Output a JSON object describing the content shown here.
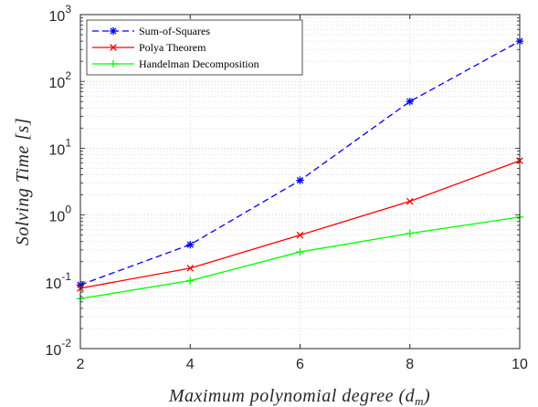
{
  "chart_data": {
    "type": "line",
    "title": "",
    "xlabel": "Maximum  polynomial  degree  (d",
    "xlabel_sub": "m",
    "xlabel_close": ")",
    "ylabel": "Solving  Time  [s]",
    "x": [
      2,
      4,
      6,
      8,
      10
    ],
    "xlim": [
      2,
      10
    ],
    "ylim": [
      0.01,
      1000
    ],
    "yscale": "log",
    "x_ticks": [
      "2",
      "4",
      "6",
      "8",
      "10"
    ],
    "y_ticks": [
      {
        "base": "10",
        "exp": "-2"
      },
      {
        "base": "10",
        "exp": "-1"
      },
      {
        "base": "10",
        "exp": "0"
      },
      {
        "base": "10",
        "exp": "1"
      },
      {
        "base": "10",
        "exp": "2"
      },
      {
        "base": "10",
        "exp": "3"
      }
    ],
    "grid": true,
    "legend_position": "top-left",
    "series": [
      {
        "name": "Sum-of-Squares",
        "values": [
          0.09,
          0.36,
          3.3,
          50,
          400
        ],
        "color": "#0000ff",
        "marker": "asterisk",
        "dash": "dashed"
      },
      {
        "name": "Polya Theorem",
        "values": [
          0.08,
          0.16,
          0.5,
          1.6,
          6.5
        ],
        "color": "#ff0000",
        "marker": "x",
        "dash": "solid"
      },
      {
        "name": "Handelman Decomposition",
        "values": [
          0.056,
          0.104,
          0.28,
          0.53,
          0.93
        ],
        "color": "#00ff00",
        "marker": "plus",
        "dash": "solid"
      }
    ]
  }
}
